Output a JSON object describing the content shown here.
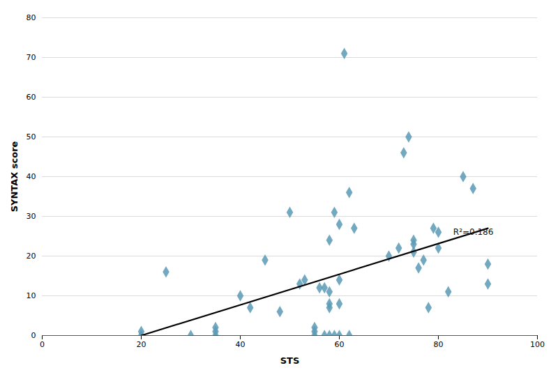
{
  "chart_data": {
    "type": "scatter",
    "xlabel": "STS",
    "ylabel": "SYNTAX score",
    "xlim": [
      0,
      100
    ],
    "ylim": [
      0,
      80
    ],
    "xticks": [
      0,
      20,
      40,
      60,
      80,
      100
    ],
    "yticks": [
      0,
      10,
      20,
      30,
      40,
      50,
      60,
      70,
      80
    ],
    "grid": true,
    "series": [
      {
        "type": "scatter",
        "marker": "diamond",
        "color": "#5a9ab5",
        "x": [
          20,
          20,
          25,
          30,
          35,
          35,
          35,
          40,
          42,
          45,
          48,
          50,
          52,
          53,
          55,
          55,
          55,
          56,
          57,
          57,
          58,
          58,
          58,
          58,
          58,
          59,
          59,
          60,
          60,
          60,
          60,
          61,
          62,
          62,
          63,
          70,
          72,
          73,
          74,
          75,
          75,
          75,
          76,
          77,
          78,
          79,
          80,
          80,
          82,
          85,
          87,
          90,
          90
        ],
        "values": [
          0,
          1,
          16,
          0,
          0,
          1,
          2,
          10,
          7,
          19,
          6,
          31,
          13,
          14,
          0,
          1,
          2,
          12,
          0,
          12,
          0,
          7,
          8,
          11,
          24,
          0,
          31,
          0,
          8,
          14,
          28,
          71,
          0,
          36,
          27,
          20,
          22,
          46,
          50,
          21,
          23,
          24,
          17,
          19,
          7,
          27,
          22,
          26,
          11,
          40,
          37,
          13,
          18
        ]
      },
      {
        "type": "line",
        "color": "#000000",
        "x": [
          20,
          90
        ],
        "values": [
          0,
          27
        ]
      }
    ],
    "annotations": [
      {
        "text": "R²=0.186",
        "x": 83,
        "y": 26
      }
    ]
  }
}
